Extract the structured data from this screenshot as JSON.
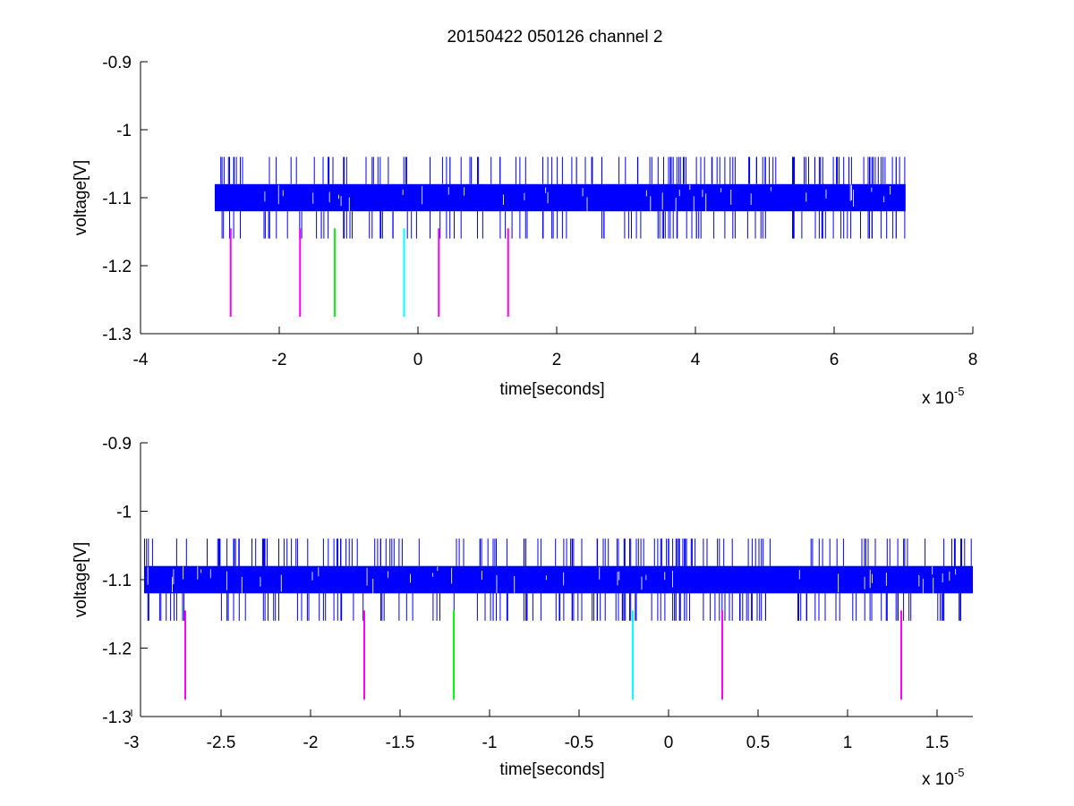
{
  "figure": {
    "title": "20150422 050126 channel 2"
  },
  "chart_data": [
    {
      "type": "line",
      "title": "20150422 050126 channel 2",
      "xlabel": "time[seconds]",
      "ylabel": "voltage[V]",
      "x_exponent_label": "x 10",
      "x_exponent": "-5",
      "xlim": [
        -4e-05,
        8e-05
      ],
      "ylim": [
        -1.3,
        -0.9
      ],
      "xticks": [
        -4e-05,
        -2e-05,
        0,
        2e-05,
        4e-05,
        6e-05,
        8e-05
      ],
      "xtick_labels": [
        "-4",
        "-2",
        "0",
        "2",
        "4",
        "6",
        "8"
      ],
      "yticks": [
        -0.9,
        -1.0,
        -1.1,
        -1.2,
        -1.3
      ],
      "ytick_labels": [
        "-0.9",
        "-1",
        "-1.1",
        "-1.2",
        "-1.3"
      ],
      "grid": false,
      "signal": {
        "name": "",
        "color": "#0000ff",
        "x_range": [
          -2.93e-05,
          7.03e-05
        ],
        "band": [
          -1.12,
          -1.08
        ],
        "spike_high": -1.04,
        "spike_low": -1.16
      },
      "markers": {
        "y_range": [
          -1.275,
          -1.145
        ],
        "x": [
          -2.7e-05,
          -1.7e-05,
          -1.2e-05,
          -2e-06,
          3e-06,
          1.3e-05
        ],
        "colors": [
          "#ff00ff",
          "#ff00ff",
          "#00ff00",
          "#00ffff",
          "#ff00ff",
          "#ff00ff"
        ]
      }
    },
    {
      "type": "line",
      "title": "",
      "xlabel": "time[seconds]",
      "ylabel": "voltage[V]",
      "x_exponent_label": "x 10",
      "x_exponent": "-5",
      "xlim": [
        -2.95e-05,
        1.7e-05
      ],
      "ylim": [
        -1.3,
        -0.9
      ],
      "xticks": [
        -3e-05,
        -2.5e-05,
        -2e-05,
        -1.5e-05,
        -1e-05,
        -5e-06,
        0,
        5e-06,
        1e-05,
        1.5e-05
      ],
      "xtick_labels": [
        "-3",
        "-2.5",
        "-2",
        "-1.5",
        "-1",
        "-0.5",
        "0",
        "0.5",
        "1",
        "1.5"
      ],
      "yticks": [
        -0.9,
        -1.0,
        -1.1,
        -1.2,
        -1.3
      ],
      "ytick_labels": [
        "-0.9",
        "-1",
        "-1.1",
        "-1.2",
        "-1.3"
      ],
      "grid": false,
      "signal": {
        "name": "",
        "color": "#0000ff",
        "x_range": [
          -2.93e-05,
          1.7e-05
        ],
        "band": [
          -1.12,
          -1.08
        ],
        "spike_high": -1.04,
        "spike_low": -1.16
      },
      "markers": {
        "y_range": [
          -1.275,
          -1.145
        ],
        "x": [
          -2.7e-05,
          -1.7e-05,
          -1.2e-05,
          -2e-06,
          3e-06,
          1.3e-05
        ],
        "colors": [
          "#ff00ff",
          "#ff00ff",
          "#00ff00",
          "#00ffff",
          "#ff00ff",
          "#ff00ff"
        ]
      }
    }
  ]
}
